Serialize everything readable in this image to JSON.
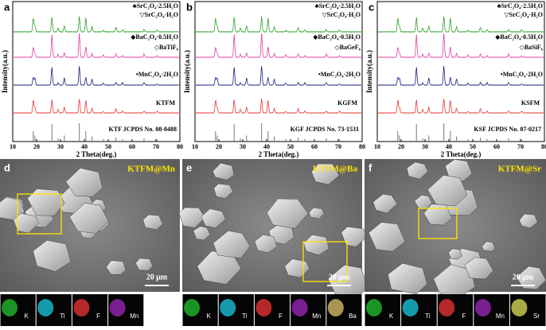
{
  "xrd_panels": [
    {
      "label": "a",
      "legend": [
        "♣SrC₂O₄·2.5H₂O",
        "▽SrC₂O₄·H₂O",
        "◆BaC₂O₄·0.5H₂O",
        "◇BaTiF₆",
        "•MnC₂O₄·2H₂O"
      ],
      "sample": "KTFM",
      "reference": "KTF JCPDS No. 08-0488",
      "y_label": "Intensity(a.u.)",
      "x_label": "2 Theta(deg.)",
      "x_ticks": [
        "10",
        "20",
        "30",
        "40",
        "50",
        "60",
        "70",
        "80"
      ]
    },
    {
      "label": "b",
      "legend": [
        "♣SrC₂O₄·2.5H₂O",
        "▽SrC₂O₄·H₂O",
        "◆BaC₂O₄·0.5H₂O",
        "◇BaGeF₆",
        "•MnC₂O₄·2H₂O"
      ],
      "sample": "KGFM",
      "reference": "KGF JCPDS No. 73-1531",
      "y_label": "Intensity(a.u.)",
      "x_label": "2 Theta(deg.)",
      "x_ticks": [
        "10",
        "20",
        "30",
        "40",
        "50",
        "60",
        "70",
        "80"
      ]
    },
    {
      "label": "c",
      "legend": [
        "♣SrC₂O₄·2.5H₂O",
        "▽SrC₂O₄·H₂O",
        "◆BaC₂O₄·0.5H₂O",
        "◇BaSiF₆",
        "•MnC₂O₄·2H₂O"
      ],
      "sample": "KSFM",
      "reference": "KSF JCPDS No. 07-0217",
      "y_label": "Intensity(a.u.)",
      "x_label": "2 Theta(deg.)",
      "x_ticks": [
        "10",
        "20",
        "30",
        "40",
        "50",
        "60",
        "70",
        "80"
      ]
    }
  ],
  "sem_panels": [
    {
      "label": "d",
      "title": "KTFM@Mn",
      "scale": "20 μm",
      "maps": [
        "K",
        "Ti",
        "F",
        "Mn"
      ]
    },
    {
      "label": "e",
      "title": "KTFM@Ba",
      "scale": "20 μm",
      "maps": [
        "K",
        "Ti",
        "F",
        "Mn",
        "Ba"
      ]
    },
    {
      "label": "f",
      "title": "KTFM@Sr",
      "scale": "20 μm",
      "maps": [
        "K",
        "Ti",
        "F",
        "Mn",
        "Sr"
      ]
    }
  ]
}
